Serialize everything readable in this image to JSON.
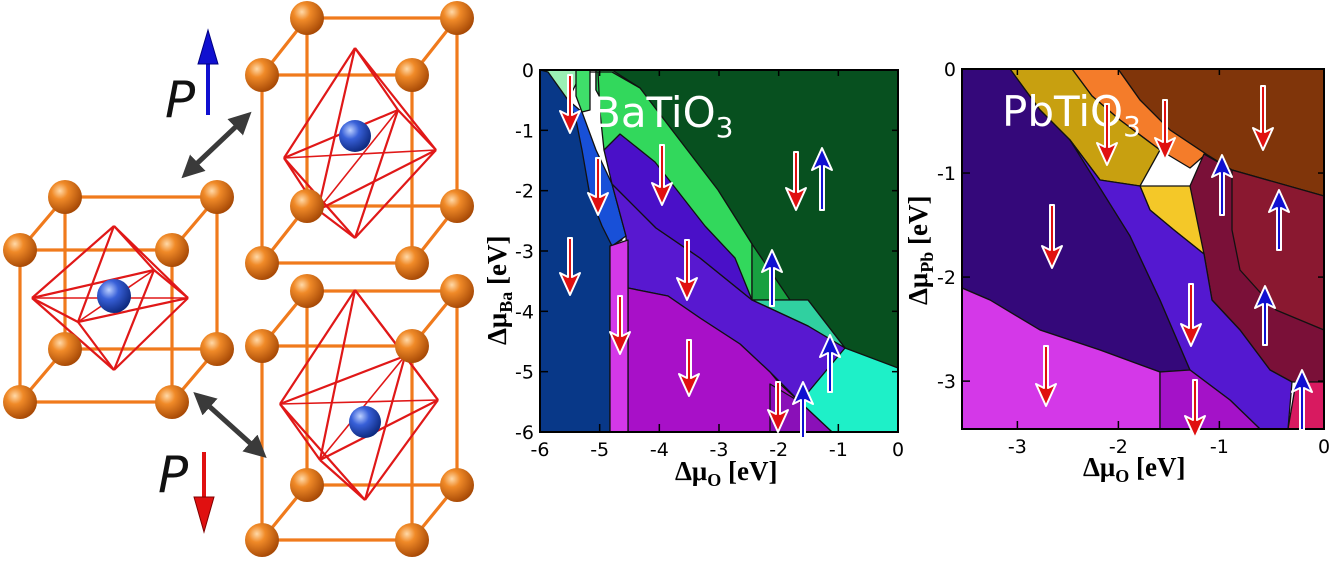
{
  "colors": {
    "cell_edge": "#f07a1c",
    "atom": "#e06a10",
    "octahedron": "#e01818",
    "center_atom": "#2250c8",
    "arrow_up": "#1010d0",
    "arrow_down": "#e01010",
    "double_arrow": "#3a3a3a"
  },
  "crystal": {
    "polarization_label": "P"
  },
  "charts": [
    {
      "id": "batio3",
      "title_main": "BaTiO",
      "title_sub": "3",
      "xlabel_main": "Δμ",
      "xlabel_sub": "O",
      "xlabel_unit": " [eV]",
      "ylabel_main": "Δμ",
      "ylabel_sub": "Ba",
      "ylabel_unit": " [eV]",
      "x_ticks": [
        "-6",
        "-5",
        "-4",
        "-3",
        "-2",
        "-1",
        "0"
      ],
      "y_ticks": [
        "0",
        "-1",
        "-2",
        "-3",
        "-4",
        "-5",
        "-6"
      ]
    },
    {
      "id": "pbtio3",
      "title_main": "PbTiO",
      "title_sub": "3",
      "xlabel_main": "Δμ",
      "xlabel_sub": "O",
      "xlabel_unit": " [eV]",
      "ylabel_main": "Δμ",
      "ylabel_sub": "Pb",
      "ylabel_unit": " [eV]",
      "x_ticks": [
        "-3",
        "-2",
        "-1",
        "0"
      ],
      "y_ticks": [
        "0",
        "-1",
        "-2",
        "-3"
      ]
    }
  ]
}
